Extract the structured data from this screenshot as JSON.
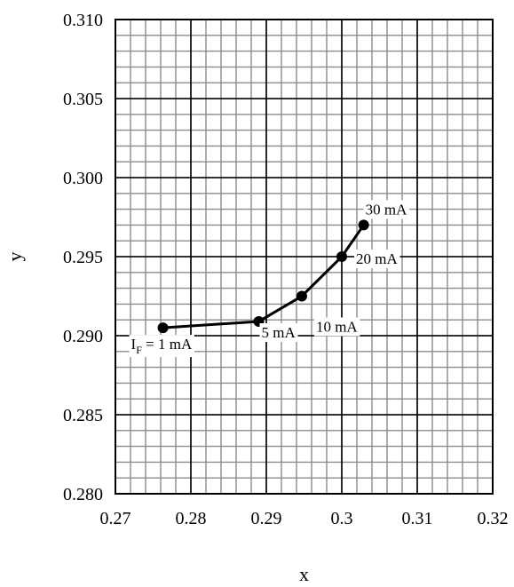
{
  "chart_data": {
    "type": "line",
    "xlabel": "x",
    "ylabel": "y",
    "xlim": [
      0.27,
      0.32
    ],
    "ylim": [
      0.28,
      0.31
    ],
    "x_major_ticks": [
      0.27,
      0.28,
      0.29,
      0.3,
      0.31,
      0.32
    ],
    "x_tick_labels": [
      "0.27",
      "0.28",
      "0.29",
      "0.3",
      "0.31",
      "0.32"
    ],
    "y_major_ticks": [
      0.28,
      0.285,
      0.29,
      0.295,
      0.3,
      0.305,
      0.31
    ],
    "y_tick_labels": [
      "0.280",
      "0.285",
      "0.290",
      "0.295",
      "0.300",
      "0.305",
      "0.310"
    ],
    "x_minor_step": 0.002,
    "y_minor_step": 0.001,
    "grid": true,
    "series": [
      {
        "x": [
          0.2763,
          0.289,
          0.2947,
          0.3,
          0.3029
        ],
        "y": [
          0.2905,
          0.2909,
          0.2925,
          0.295,
          0.297
        ],
        "labels": [
          "1 mA",
          "5 mA",
          "10 mA",
          "20 mA",
          "30 mA"
        ],
        "first_label_prefix": "I",
        "first_label_subscript": "F",
        "first_label_eq": " = ",
        "color": "#000000"
      }
    ]
  }
}
